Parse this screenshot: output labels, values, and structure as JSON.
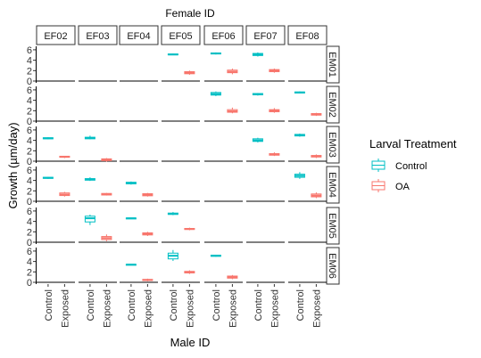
{
  "chart_data": {
    "type": "boxplot",
    "top_title": "Female ID",
    "xlabel": "Male ID",
    "ylabel": "Growth (µm/day)",
    "columns": [
      "EF02",
      "EF03",
      "EF04",
      "EF05",
      "EF06",
      "EF07",
      "EF08"
    ],
    "rows": [
      "EM01",
      "EM02",
      "EM03",
      "EM04",
      "EM05",
      "EM06"
    ],
    "x_categories": [
      "Control",
      "Exposed"
    ],
    "y_ticks": [
      0,
      2,
      4,
      6
    ],
    "ylim": [
      0,
      6.5
    ],
    "legend": {
      "title": "Larval Treatment",
      "entries": [
        {
          "label": "Control",
          "color": "#00BFC4"
        },
        {
          "label": "OA",
          "color": "#F8766D"
        }
      ]
    },
    "colors": {
      "Control": "#00BFC4",
      "Exposed": "#F8766D"
    },
    "grid": false,
    "cells": [
      {
        "row": "EM01",
        "col": "EF05",
        "Control": {
          "min": 5.0,
          "q1": 5.05,
          "med": 5.1,
          "q3": 5.2,
          "max": 5.3
        },
        "Exposed": {
          "min": 1.2,
          "q1": 1.4,
          "med": 1.6,
          "q3": 1.8,
          "max": 2.0
        }
      },
      {
        "row": "EM01",
        "col": "EF06",
        "Control": {
          "min": 5.1,
          "q1": 5.2,
          "med": 5.3,
          "q3": 5.4,
          "max": 5.5
        },
        "Exposed": {
          "min": 1.3,
          "q1": 1.6,
          "med": 1.8,
          "q3": 2.1,
          "max": 2.4
        }
      },
      {
        "row": "EM01",
        "col": "EF07",
        "Control": {
          "min": 4.7,
          "q1": 4.9,
          "med": 5.1,
          "q3": 5.3,
          "max": 5.5
        },
        "Exposed": {
          "min": 1.6,
          "q1": 1.8,
          "med": 2.0,
          "q3": 2.2,
          "max": 2.4
        }
      },
      {
        "row": "EM02",
        "col": "EF06",
        "Control": {
          "min": 4.8,
          "q1": 5.0,
          "med": 5.2,
          "q3": 5.5,
          "max": 5.7
        },
        "Exposed": {
          "min": 1.5,
          "q1": 1.7,
          "med": 1.9,
          "q3": 2.2,
          "max": 2.6
        }
      },
      {
        "row": "EM02",
        "col": "EF07",
        "Control": {
          "min": 4.9,
          "q1": 5.05,
          "med": 5.15,
          "q3": 5.3,
          "max": 5.4
        },
        "Exposed": {
          "min": 1.6,
          "q1": 1.8,
          "med": 2.0,
          "q3": 2.2,
          "max": 2.5
        }
      },
      {
        "row": "EM02",
        "col": "EF08",
        "Control": {
          "min": 5.3,
          "q1": 5.4,
          "med": 5.5,
          "q3": 5.6,
          "max": 5.7
        },
        "Exposed": {
          "min": 1.0,
          "q1": 1.15,
          "med": 1.3,
          "q3": 1.45,
          "max": 1.6
        }
      },
      {
        "row": "EM03",
        "col": "EF02",
        "Control": {
          "min": 4.2,
          "q1": 4.3,
          "med": 4.4,
          "q3": 4.5,
          "max": 4.6
        },
        "Exposed": {
          "min": 0.6,
          "q1": 0.75,
          "med": 0.85,
          "q3": 0.95,
          "max": 1.0
        }
      },
      {
        "row": "EM03",
        "col": "EF03",
        "Control": {
          "min": 4.2,
          "q1": 4.3,
          "med": 4.45,
          "q3": 4.6,
          "max": 4.9
        },
        "Exposed": {
          "min": -0.1,
          "q1": 0.1,
          "med": 0.25,
          "q3": 0.45,
          "max": 0.6
        }
      },
      {
        "row": "EM03",
        "col": "EF07",
        "Control": {
          "min": 3.6,
          "q1": 3.8,
          "med": 4.0,
          "q3": 4.3,
          "max": 4.5
        },
        "Exposed": {
          "min": 1.0,
          "q1": 1.15,
          "med": 1.3,
          "q3": 1.45,
          "max": 1.7
        }
      },
      {
        "row": "EM03",
        "col": "EF08",
        "Control": {
          "min": 4.7,
          "q1": 4.85,
          "med": 5.0,
          "q3": 5.15,
          "max": 5.3
        },
        "Exposed": {
          "min": 0.6,
          "q1": 0.8,
          "med": 0.95,
          "q3": 1.1,
          "max": 1.3
        }
      },
      {
        "row": "EM04",
        "col": "EF02",
        "Control": {
          "min": 4.3,
          "q1": 4.4,
          "med": 4.5,
          "q3": 4.6,
          "max": 4.7
        },
        "Exposed": {
          "min": 0.9,
          "q1": 1.1,
          "med": 1.3,
          "q3": 1.6,
          "max": 1.8
        }
      },
      {
        "row": "EM04",
        "col": "EF03",
        "Control": {
          "min": 3.9,
          "q1": 4.05,
          "med": 4.2,
          "q3": 4.35,
          "max": 4.6
        },
        "Exposed": {
          "min": 1.1,
          "q1": 1.2,
          "med": 1.35,
          "q3": 1.5,
          "max": 1.6
        }
      },
      {
        "row": "EM04",
        "col": "EF04",
        "Control": {
          "min": 3.2,
          "q1": 3.35,
          "med": 3.5,
          "q3": 3.65,
          "max": 3.8
        },
        "Exposed": {
          "min": 0.9,
          "q1": 1.05,
          "med": 1.25,
          "q3": 1.45,
          "max": 1.6
        }
      },
      {
        "row": "EM04",
        "col": "EF08",
        "Control": {
          "min": 4.3,
          "q1": 4.6,
          "med": 4.9,
          "q3": 5.2,
          "max": 5.6
        },
        "Exposed": {
          "min": 0.6,
          "q1": 0.85,
          "med": 1.1,
          "q3": 1.4,
          "max": 1.7
        }
      },
      {
        "row": "EM05",
        "col": "EF03",
        "Control": {
          "min": 3.3,
          "q1": 3.9,
          "med": 4.6,
          "q3": 5.0,
          "max": 5.3
        },
        "Exposed": {
          "min": 0.2,
          "q1": 0.5,
          "med": 0.8,
          "q3": 1.1,
          "max": 1.5
        }
      },
      {
        "row": "EM05",
        "col": "EF04",
        "Control": {
          "min": 4.5,
          "q1": 4.55,
          "med": 4.6,
          "q3": 4.65,
          "max": 4.7
        },
        "Exposed": {
          "min": 1.2,
          "q1": 1.4,
          "med": 1.6,
          "q3": 1.8,
          "max": 2.0
        }
      },
      {
        "row": "EM05",
        "col": "EF05",
        "Control": {
          "min": 5.2,
          "q1": 5.35,
          "med": 5.45,
          "q3": 5.6,
          "max": 5.8
        },
        "Exposed": {
          "min": 2.3,
          "q1": 2.45,
          "med": 2.55,
          "q3": 2.65,
          "max": 2.8
        }
      },
      {
        "row": "EM06",
        "col": "EF04",
        "Control": {
          "min": 3.3,
          "q1": 3.35,
          "med": 3.4,
          "q3": 3.45,
          "max": 3.5
        },
        "Exposed": {
          "min": 0.2,
          "q1": 0.35,
          "med": 0.45,
          "q3": 0.55,
          "max": 0.7
        }
      },
      {
        "row": "EM06",
        "col": "EF05",
        "Control": {
          "min": 4.1,
          "q1": 4.5,
          "med": 5.1,
          "q3": 5.6,
          "max": 6.2
        },
        "Exposed": {
          "min": 1.6,
          "q1": 1.8,
          "med": 1.95,
          "q3": 2.1,
          "max": 2.3
        }
      },
      {
        "row": "EM06",
        "col": "EF06",
        "Control": {
          "min": 4.9,
          "q1": 5.0,
          "med": 5.1,
          "q3": 5.2,
          "max": 5.3
        },
        "Exposed": {
          "min": 0.6,
          "q1": 0.8,
          "med": 1.0,
          "q3": 1.2,
          "max": 1.4
        }
      }
    ]
  }
}
